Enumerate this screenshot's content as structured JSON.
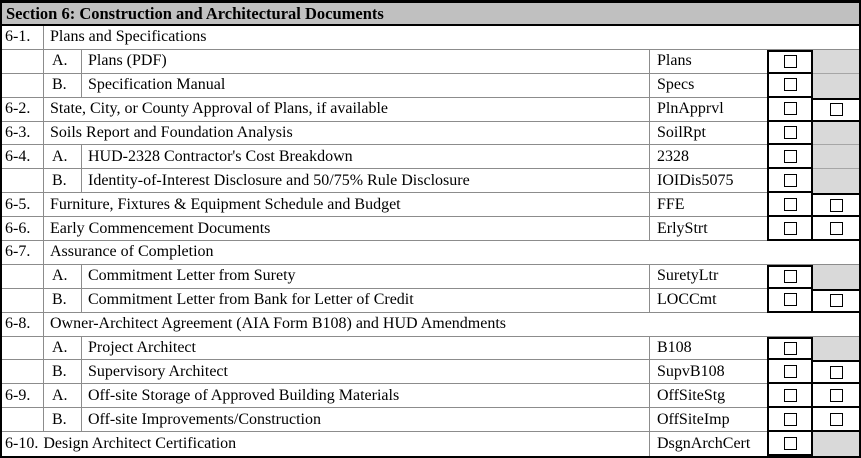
{
  "title": "Section 6: Construction and Architectural Documents",
  "colors": {
    "header_bg": "#c0c0c0",
    "shaded_cell_bg": "#d9d9d9",
    "gridline": "#8c8c8c",
    "border": "#000000"
  },
  "table": {
    "rows": [
      {
        "num": "6-1.",
        "desc": "Plans and Specifications",
        "span": true
      },
      {
        "num": "",
        "letter": "A.",
        "desc": "Plans (PDF)",
        "code": "Plans",
        "cb2": "shaded"
      },
      {
        "num": "",
        "letter": "B.",
        "desc": "Specification Manual",
        "code": "Specs",
        "cb2": "shaded"
      },
      {
        "num": "6-2.",
        "desc": "State, City, or County Approval of Plans, if available",
        "code": "PlnApprvl",
        "cb2": "checkbox"
      },
      {
        "num": "6-3.",
        "desc": "Soils Report and Foundation Analysis",
        "code": "SoilRpt",
        "cb2": "shaded"
      },
      {
        "num": "6-4.",
        "letter": "A.",
        "desc": "HUD-2328 Contractor's Cost Breakdown",
        "code": "2328",
        "cb2": "shaded"
      },
      {
        "num": "",
        "letter": "B.",
        "desc": "Identity-of-Interest Disclosure and 50/75% Rule Disclosure",
        "code": "IOIDis5075",
        "cb2": "shaded"
      },
      {
        "num": "6-5.",
        "desc": "Furniture, Fixtures & Equipment Schedule and Budget",
        "code": "FFE",
        "cb2": "checkbox"
      },
      {
        "num": "6-6.",
        "desc": "Early Commencement Documents",
        "code": "ErlyStrt",
        "cb2": "checkbox"
      },
      {
        "num": "6-7.",
        "desc": "Assurance of Completion",
        "span": true
      },
      {
        "num": "",
        "letter": "A.",
        "desc": "Commitment Letter from Surety",
        "code": "SuretyLtr",
        "cb2": "shaded"
      },
      {
        "num": "",
        "letter": "B.",
        "desc": "Commitment Letter from Bank for Letter of Credit",
        "code": "LOCCmt",
        "cb2": "checkbox"
      },
      {
        "num": "6-8.",
        "desc": "Owner-Architect Agreement (AIA Form B108) and HUD Amendments",
        "span": true
      },
      {
        "num": "",
        "letter": "A.",
        "desc": "Project Architect",
        "code": "B108",
        "cb2": "shaded"
      },
      {
        "num": "",
        "letter": "B.",
        "desc": "Supervisory Architect",
        "code": "SupvB108",
        "cb2": "checkbox"
      },
      {
        "num": "6-9.",
        "letter": "A.",
        "desc": "Off-site Storage of Approved Building Materials",
        "code": "OffSiteStg",
        "cb2": "checkbox"
      },
      {
        "num": "",
        "letter": "B.",
        "desc": "Off-site Improvements/Construction",
        "code": "OffSiteImp",
        "cb2": "checkbox"
      },
      {
        "num": "6-10.",
        "desc": "Design Architect Certification",
        "code": "DsgnArchCert",
        "cb2": "shaded",
        "merged": true
      }
    ]
  }
}
